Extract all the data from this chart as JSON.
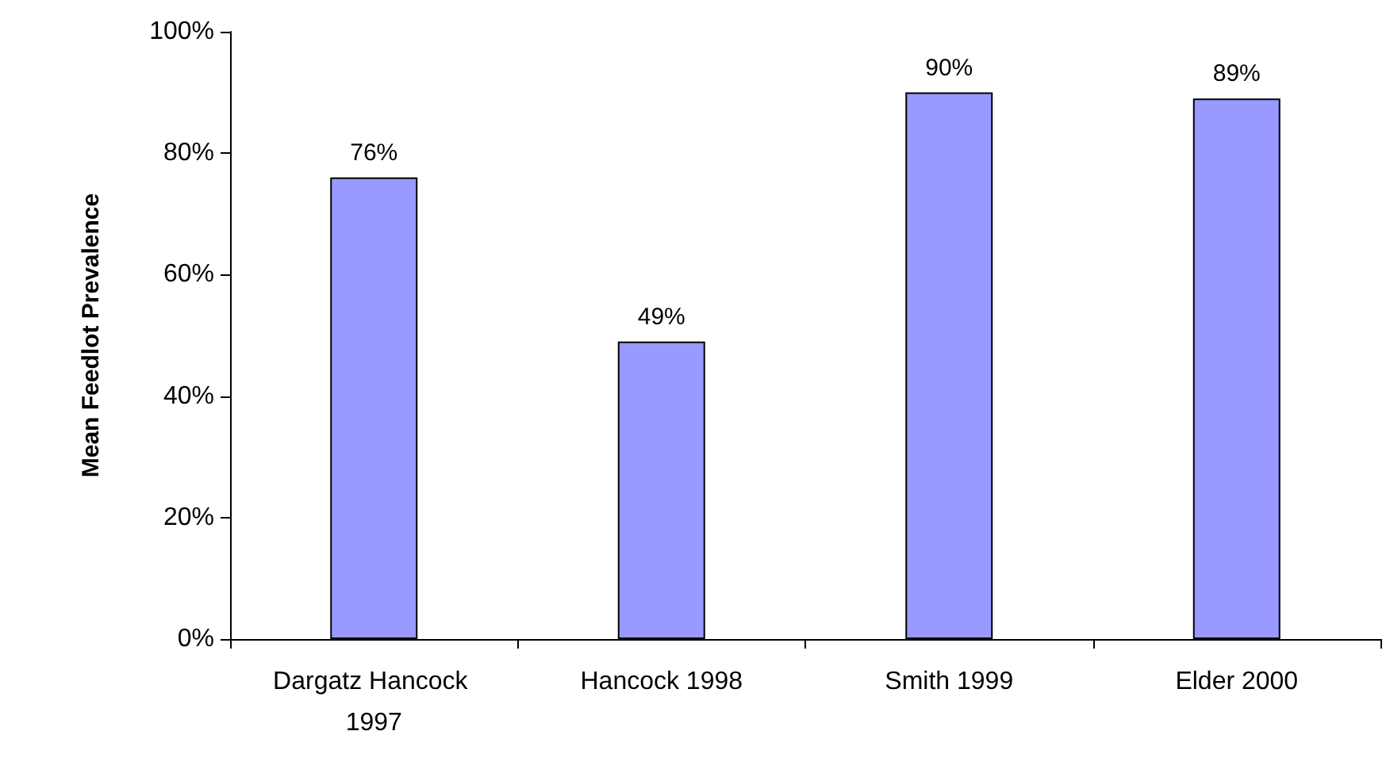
{
  "chart_data": {
    "type": "bar",
    "ylabel": "Mean Feedlot Prevalence",
    "categories": [
      "Dargatz Hancock 1997",
      "Hancock 1998",
      "Smith 1999",
      "Elder 2000"
    ],
    "values": [
      76,
      49,
      90,
      89
    ],
    "color": "#9999ff",
    "value_labels": [
      "76%",
      "49%",
      "90%",
      "89%"
    ],
    "ylim": [
      0,
      100
    ],
    "yticks": [
      {
        "value": 0,
        "label": "0%"
      },
      {
        "value": 20,
        "label": "20%"
      },
      {
        "value": 40,
        "label": "40%"
      },
      {
        "value": 60,
        "label": "60%"
      },
      {
        "value": 80,
        "label": "80%"
      },
      {
        "value": 100,
        "label": "100%"
      }
    ],
    "grid": false
  }
}
